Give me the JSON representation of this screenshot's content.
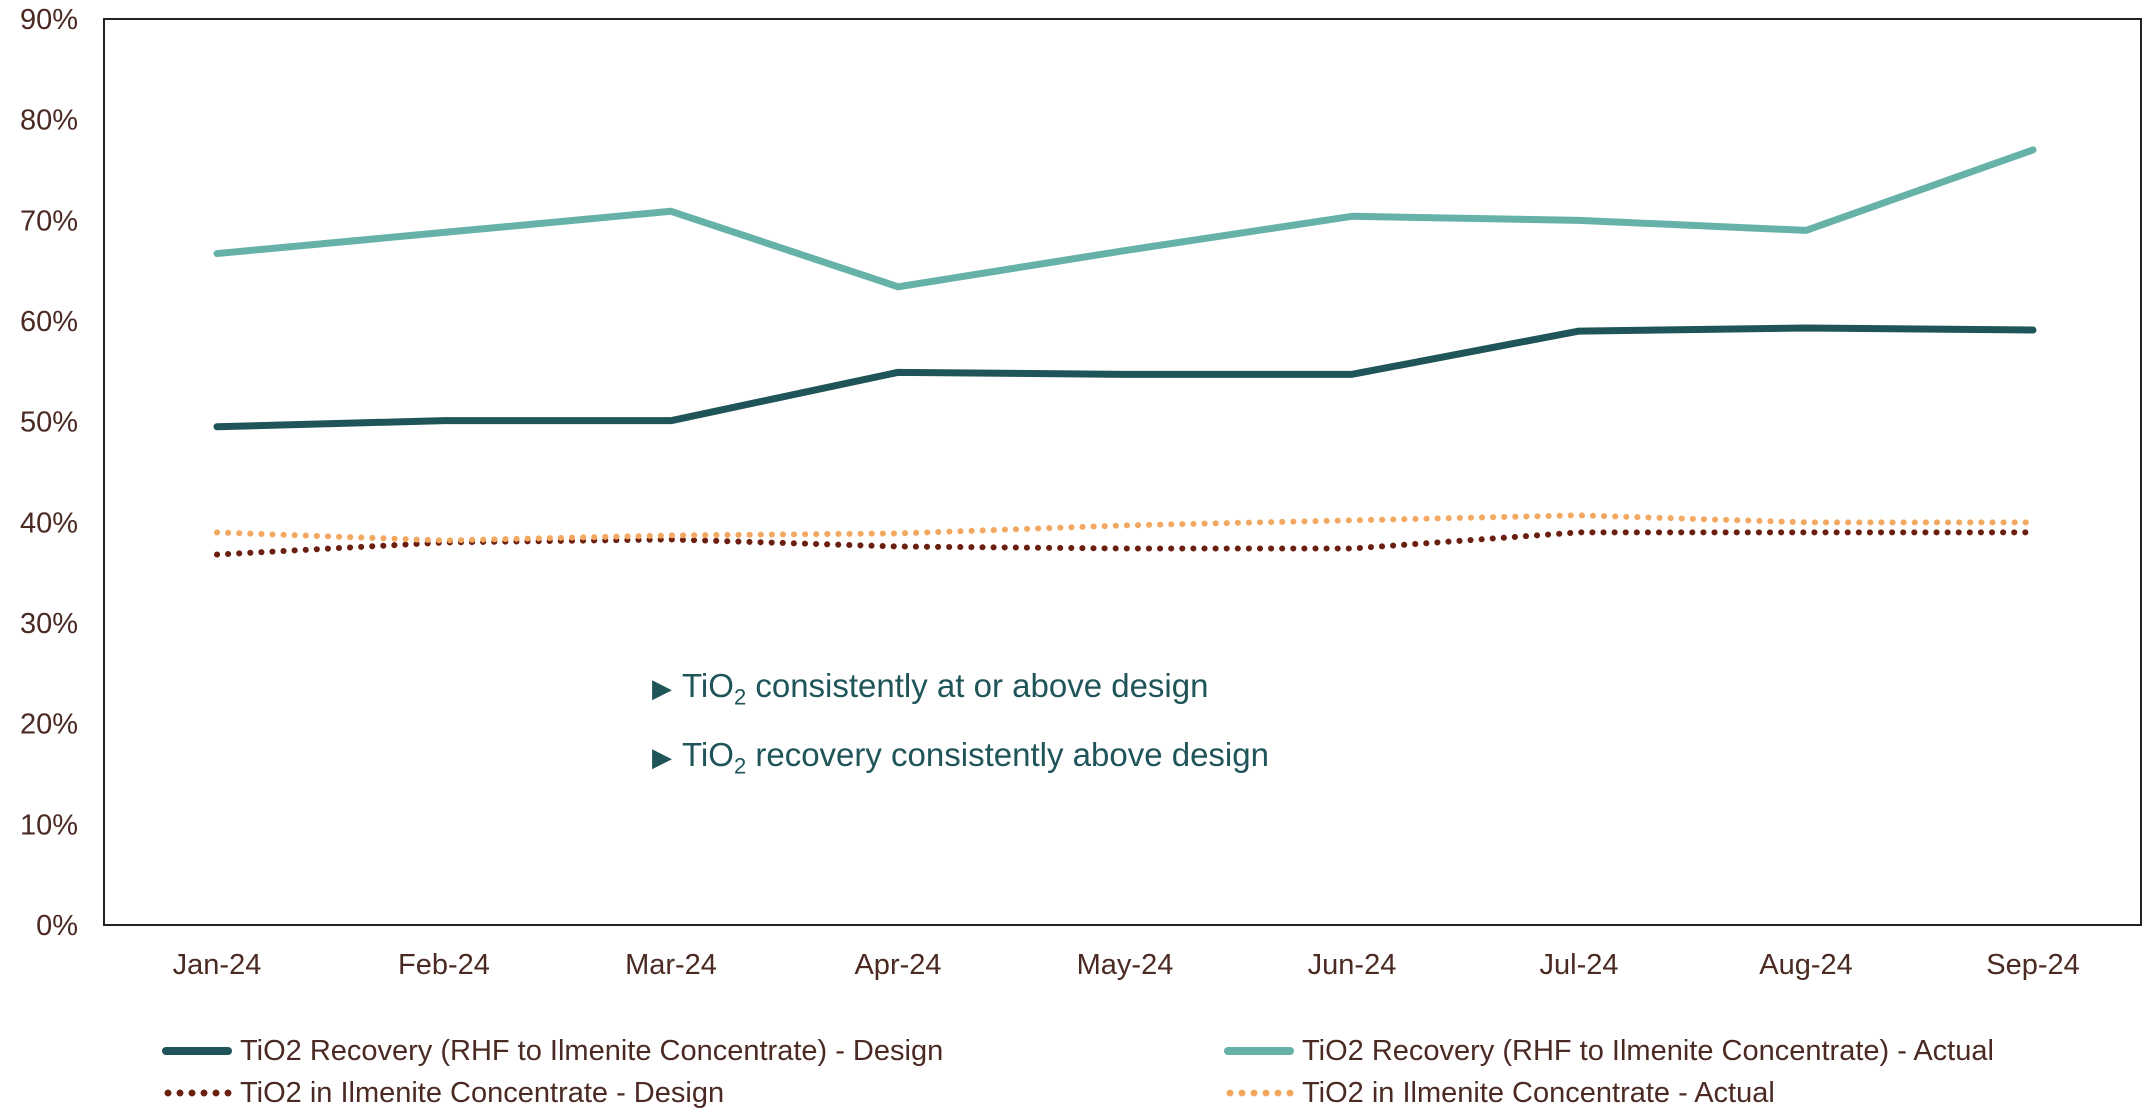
{
  "chart_data": {
    "type": "line",
    "categories": [
      "Jan-24",
      "Feb-24",
      "Mar-24",
      "Apr-24",
      "May-24",
      "Jun-24",
      "Jul-24",
      "Aug-24",
      "Sep-24"
    ],
    "ylim": [
      0,
      90
    ],
    "yticks": [
      "0%",
      "10%",
      "20%",
      "30%",
      "40%",
      "50%",
      "60%",
      "70%",
      "80%",
      "90%"
    ],
    "series": [
      {
        "name": "TiO2 Recovery (RHF to Ilmenite Concentrate) - Design",
        "style": "solid",
        "color": "#1f5459",
        "values": [
          49.5,
          50.1,
          50.1,
          54.9,
          54.7,
          54.7,
          59.0,
          59.3,
          59.1
        ]
      },
      {
        "name": "TiO2 Recovery (RHF to Ilmenite Concentrate) - Actual",
        "style": "solid",
        "color": "#66b2a8",
        "values": [
          66.7,
          68.8,
          70.9,
          63.4,
          67.0,
          70.4,
          70.0,
          69.0,
          77.0
        ]
      },
      {
        "name": "TiO2 in Ilmenite Concentrate - Design",
        "style": "dotted",
        "color": "#6b1f10",
        "values": [
          36.8,
          38.0,
          38.3,
          37.6,
          37.4,
          37.4,
          39.0,
          39.0,
          39.0
        ]
      },
      {
        "name": "TiO2 in Ilmenite Concentrate - Actual",
        "style": "dotted",
        "color": "#f2a860",
        "values": [
          39.0,
          38.2,
          38.7,
          38.9,
          39.7,
          40.2,
          40.7,
          40.0,
          40.0
        ]
      }
    ],
    "legend_position": "bottom",
    "grid": false
  },
  "annotations": {
    "line1": {
      "prefix": "TiO",
      "sub": "2",
      "suffix": " consistently at or above design"
    },
    "line2": {
      "prefix": "TiO",
      "sub": "2",
      "suffix": " recovery consistently above design"
    }
  },
  "icons": {
    "bullet": "right-triangle-icon"
  }
}
